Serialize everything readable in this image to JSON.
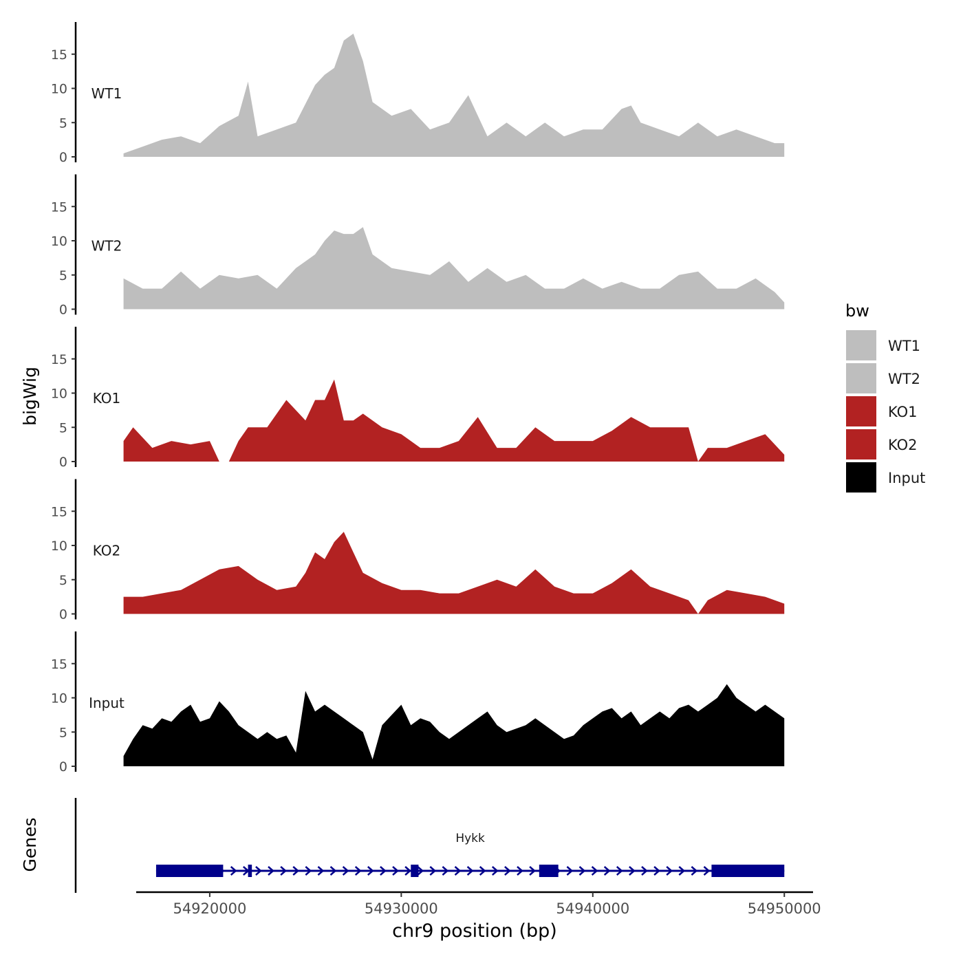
{
  "chart_data": {
    "type": "area",
    "y_axis_label": "bigWig",
    "x_axis_label": "chr9 position (bp)",
    "x_range": [
      54915500,
      54950000
    ],
    "x_ticks": [
      54920000,
      54930000,
      54940000,
      54950000
    ],
    "x_tick_labels": [
      "54920000",
      "54930000",
      "54940000",
      "54950000"
    ],
    "y_range": [
      0,
      20
    ],
    "y_ticks": [
      0,
      5,
      10,
      15
    ],
    "y_tick_labels": [
      "0",
      "5",
      "10",
      "15"
    ],
    "legend": {
      "title": "bw",
      "position": "right",
      "entries": [
        {
          "label": "WT1",
          "color": "#bebebe"
        },
        {
          "label": "WT2",
          "color": "#bebebe"
        },
        {
          "label": "KO1",
          "color": "#b22222"
        },
        {
          "label": "KO2",
          "color": "#b22222"
        },
        {
          "label": "Input",
          "color": "#000000"
        }
      ]
    },
    "tracks": [
      {
        "name": "WT1",
        "color": "#bebebe",
        "x": [
          54915500,
          54916500,
          54917500,
          54918500,
          54919500,
          54920500,
          54921500,
          54922000,
          54922500,
          54923500,
          54924500,
          54925500,
          54926000,
          54926500,
          54927000,
          54927500,
          54928000,
          54928500,
          54929500,
          54930500,
          54931500,
          54932500,
          54933500,
          54934500,
          54935500,
          54936500,
          54937500,
          54938500,
          54939500,
          54940500,
          54941500,
          54942000,
          54942500,
          54943500,
          54944500,
          54945500,
          54946500,
          54947500,
          54948500,
          54949500,
          54950000
        ],
        "y": [
          0.5,
          1.5,
          2.5,
          3,
          2,
          4.5,
          6,
          11,
          3,
          4,
          5,
          10.5,
          12,
          13,
          17,
          18,
          14,
          8,
          6,
          7,
          4,
          5,
          9,
          3,
          5,
          3,
          5,
          3,
          4,
          4,
          7,
          7.5,
          5,
          4,
          3,
          5,
          3,
          4,
          3,
          2,
          2
        ]
      },
      {
        "name": "WT2",
        "color": "#bebebe",
        "x": [
          54915500,
          54916500,
          54917500,
          54918500,
          54919500,
          54920500,
          54921500,
          54922500,
          54923500,
          54924500,
          54925500,
          54926000,
          54926500,
          54927000,
          54927500,
          54928000,
          54928500,
          54929500,
          54930500,
          54931500,
          54932500,
          54933500,
          54934500,
          54935500,
          54936500,
          54937500,
          54938500,
          54939500,
          54940500,
          54941500,
          54942500,
          54943500,
          54944500,
          54945500,
          54946500,
          54947500,
          54948500,
          54949500,
          54950000
        ],
        "y": [
          4.5,
          3,
          3,
          5.5,
          3,
          5,
          4.5,
          5,
          3,
          6,
          8,
          10,
          11.5,
          11,
          11,
          12,
          8,
          6,
          5.5,
          5,
          7,
          4,
          6,
          4,
          5,
          3,
          3,
          4.5,
          3,
          4,
          3,
          3,
          5,
          5.5,
          3,
          3,
          4.5,
          2.5,
          1
        ]
      },
      {
        "name": "KO1",
        "color": "#b22222",
        "x": [
          54915500,
          54916000,
          54917000,
          54918000,
          54919000,
          54920000,
          54920500,
          54921000,
          54921500,
          54922000,
          54923000,
          54924000,
          54925000,
          54925500,
          54926000,
          54926500,
          54927000,
          54927500,
          54928000,
          54929000,
          54930000,
          54931000,
          54932000,
          54933000,
          54934000,
          54935000,
          54936000,
          54937000,
          54938000,
          54939000,
          54940000,
          54941000,
          54942000,
          54943000,
          54944000,
          54945000,
          54945500,
          54946000,
          54947000,
          54948000,
          54949000,
          54950000
        ],
        "y": [
          3,
          5,
          2,
          3,
          2.5,
          3,
          0,
          0,
          3,
          5,
          5,
          9,
          6,
          9,
          9,
          12,
          6,
          6,
          7,
          5,
          4,
          2,
          2,
          3,
          6.5,
          2,
          2,
          5,
          3,
          3,
          3,
          4.5,
          6.5,
          5,
          5,
          5,
          0,
          2,
          2,
          3,
          4,
          1
        ]
      },
      {
        "name": "KO2",
        "color": "#b22222",
        "x": [
          54915500,
          54916500,
          54917500,
          54918500,
          54919500,
          54920500,
          54921500,
          54922500,
          54923500,
          54924500,
          54925000,
          54925500,
          54926000,
          54926500,
          54927000,
          54927500,
          54928000,
          54929000,
          54930000,
          54931000,
          54932000,
          54933000,
          54934000,
          54935000,
          54936000,
          54937000,
          54938000,
          54939000,
          54940000,
          54941000,
          54942000,
          54943000,
          54944000,
          54945000,
          54945500,
          54946000,
          54947000,
          54948000,
          54949000,
          54950000
        ],
        "y": [
          2.5,
          2.5,
          3,
          3.5,
          5,
          6.5,
          7,
          5,
          3.5,
          4,
          6,
          9,
          8,
          10.5,
          12,
          9,
          6,
          4.5,
          3.5,
          3.5,
          3,
          3,
          4,
          5,
          4,
          6.5,
          4,
          3,
          3,
          4.5,
          6.5,
          4,
          3,
          2,
          0,
          2,
          3.5,
          3,
          2.5,
          1.5
        ]
      },
      {
        "name": "Input",
        "color": "#000000",
        "x": [
          54915500,
          54916000,
          54916500,
          54917000,
          54917500,
          54918000,
          54918500,
          54919000,
          54919500,
          54920000,
          54920500,
          54921000,
          54921500,
          54922000,
          54922500,
          54923000,
          54923500,
          54924000,
          54924500,
          54925000,
          54925500,
          54926000,
          54926500,
          54927000,
          54927500,
          54928000,
          54928500,
          54929000,
          54929500,
          54930000,
          54930500,
          54931000,
          54931500,
          54932000,
          54932500,
          54933000,
          54933500,
          54934000,
          54934500,
          54935000,
          54935500,
          54936000,
          54936500,
          54937000,
          54937500,
          54938000,
          54938500,
          54939000,
          54939500,
          54940000,
          54940500,
          54941000,
          54941500,
          54942000,
          54942500,
          54943000,
          54943500,
          54944000,
          54944500,
          54945000,
          54945500,
          54946000,
          54946500,
          54947000,
          54947500,
          54948000,
          54948500,
          54949000,
          54949500,
          54950000
        ],
        "y": [
          1.5,
          4,
          6,
          5.5,
          7,
          6.5,
          8,
          9,
          6.5,
          7,
          9.5,
          8,
          6,
          5,
          4,
          5,
          4,
          4.5,
          2,
          11,
          8,
          9,
          8,
          7,
          6,
          5,
          1,
          6,
          7.5,
          9,
          6,
          7,
          6.5,
          5,
          4,
          5,
          6,
          7,
          8,
          6,
          5,
          5.5,
          6,
          7,
          6,
          5,
          4,
          4.5,
          6,
          7,
          8,
          8.5,
          7,
          8,
          6,
          7,
          8,
          7,
          8.5,
          9,
          8,
          9,
          10,
          12,
          10,
          9,
          8,
          9,
          8,
          7
        ]
      }
    ],
    "gene_track": {
      "label": "Genes",
      "gene_name": "Hykk",
      "strand": "+",
      "start": 54917200,
      "end": 54950000,
      "exons": [
        [
          54917200,
          54920700
        ],
        [
          54922000,
          54922200
        ],
        [
          54930500,
          54930900
        ],
        [
          54937200,
          54938200
        ],
        [
          54946200,
          54950000
        ]
      ]
    }
  }
}
